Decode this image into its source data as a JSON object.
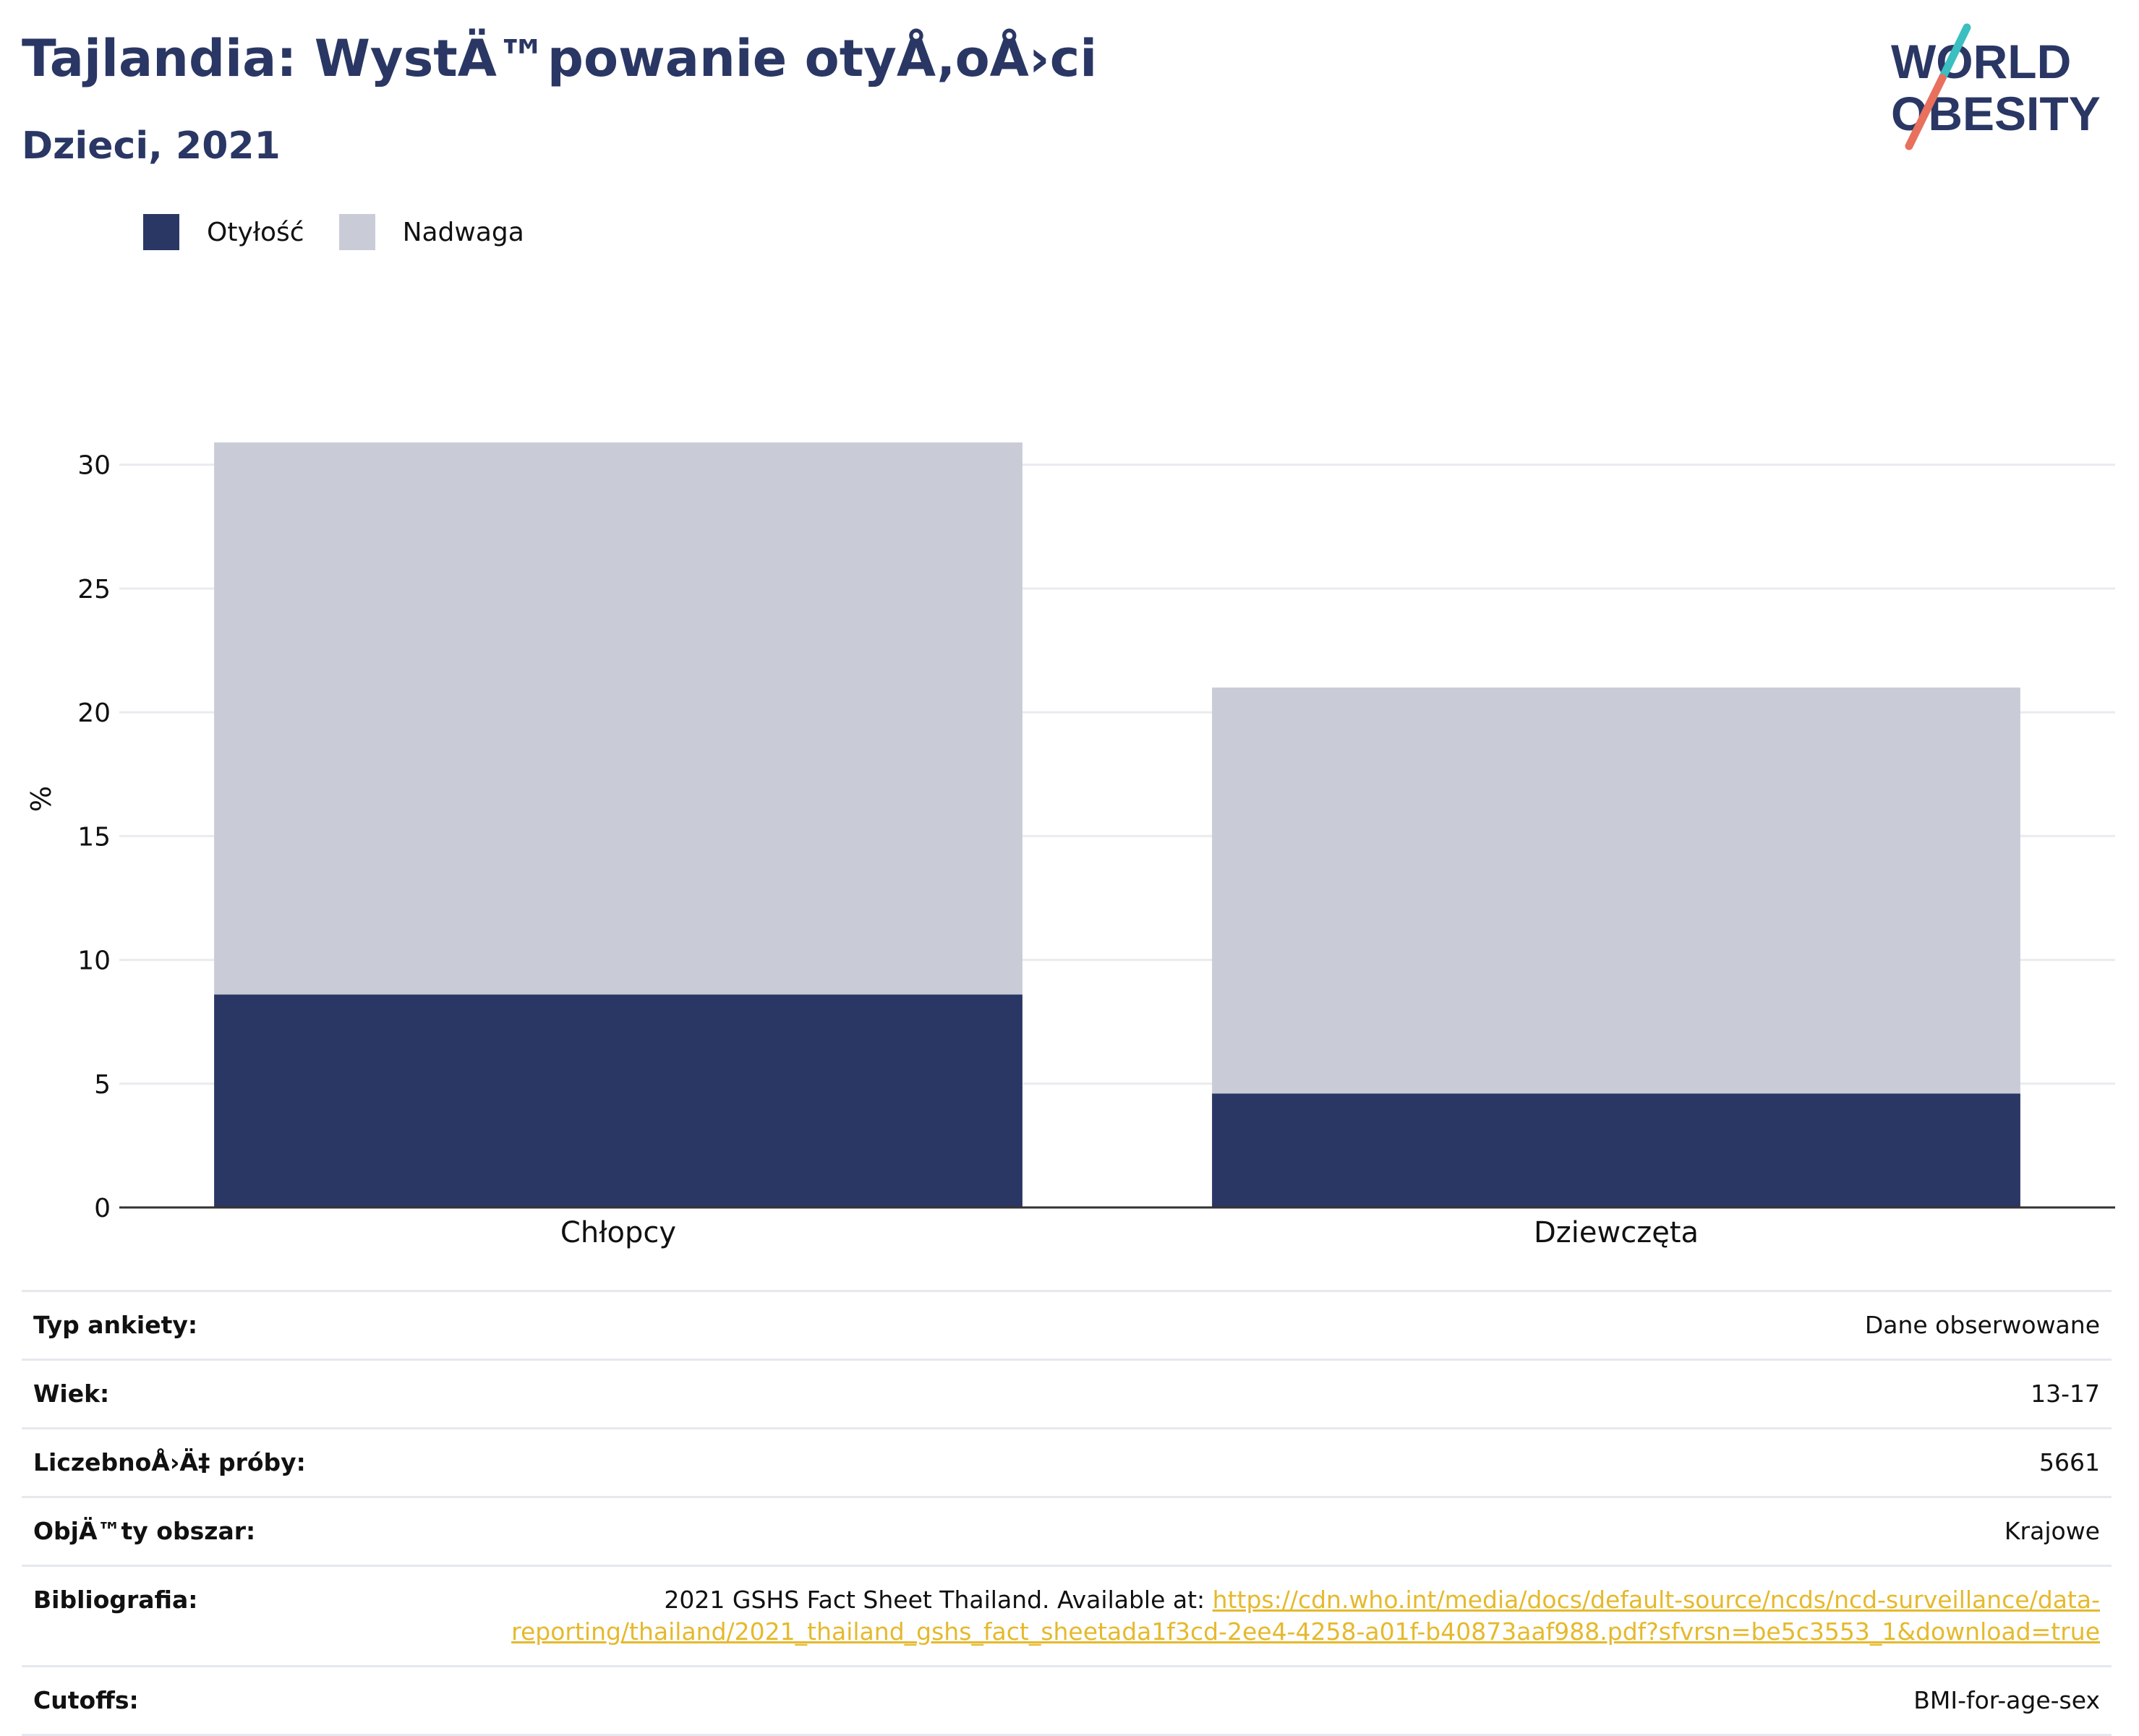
{
  "header": {
    "title": "Tajlandia: WystÄ™powanie otyÅ‚oÅ›ci",
    "subtitle": "Dzieci, 2021"
  },
  "logo": {
    "line1": "WORLD",
    "line2": "OBESITY",
    "colors": {
      "text": "#2a3764",
      "slash_top": "#3bbfc1",
      "slash_bottom": "#e8705d"
    }
  },
  "legend": [
    {
      "label": "Otyłość",
      "color": "#2a3764"
    },
    {
      "label": "Nadwaga",
      "color": "#c9ccd7"
    }
  ],
  "chart_data": {
    "type": "bar",
    "stacked": true,
    "categories": [
      "Chłopcy",
      "Dziewczęta"
    ],
    "series": [
      {
        "name": "Otyłość",
        "values": [
          8.6,
          4.6
        ],
        "color": "#2a3764"
      },
      {
        "name": "Nadwaga",
        "values": [
          22.3,
          16.4
        ],
        "color": "#c9ccd7"
      }
    ],
    "ylabel": "%",
    "ylim": [
      0,
      33
    ],
    "yticks": [
      0,
      5,
      10,
      15,
      20,
      25,
      30
    ],
    "grid": true,
    "legend_position": "top-left"
  },
  "info": [
    {
      "key": "Typ ankiety:",
      "value": "Dane obserwowane"
    },
    {
      "key": "Wiek:",
      "value": "13-17"
    },
    {
      "key": "LiczebnoÅ›Ä‡ próby:",
      "value": "5661"
    },
    {
      "key": "ObjÄ™ty obszar:",
      "value": "Krajowe"
    },
    {
      "key": "Bibliografia:",
      "value": "2021 GSHS Fact Sheet Thailand. Available at:",
      "link": "https://cdn.who.int/media/docs/default-source/ncds/ncd-surveillance/data-reporting/thailand/2021_thailand_gshs_fact_sheetada1f3cd-2ee4-4258-a01f-b40873aaf988.pdf?sfvrsn=be5c3553_1&download=true"
    },
    {
      "key": "Cutoffs:",
      "value": "BMI-for-age-sex"
    }
  ]
}
